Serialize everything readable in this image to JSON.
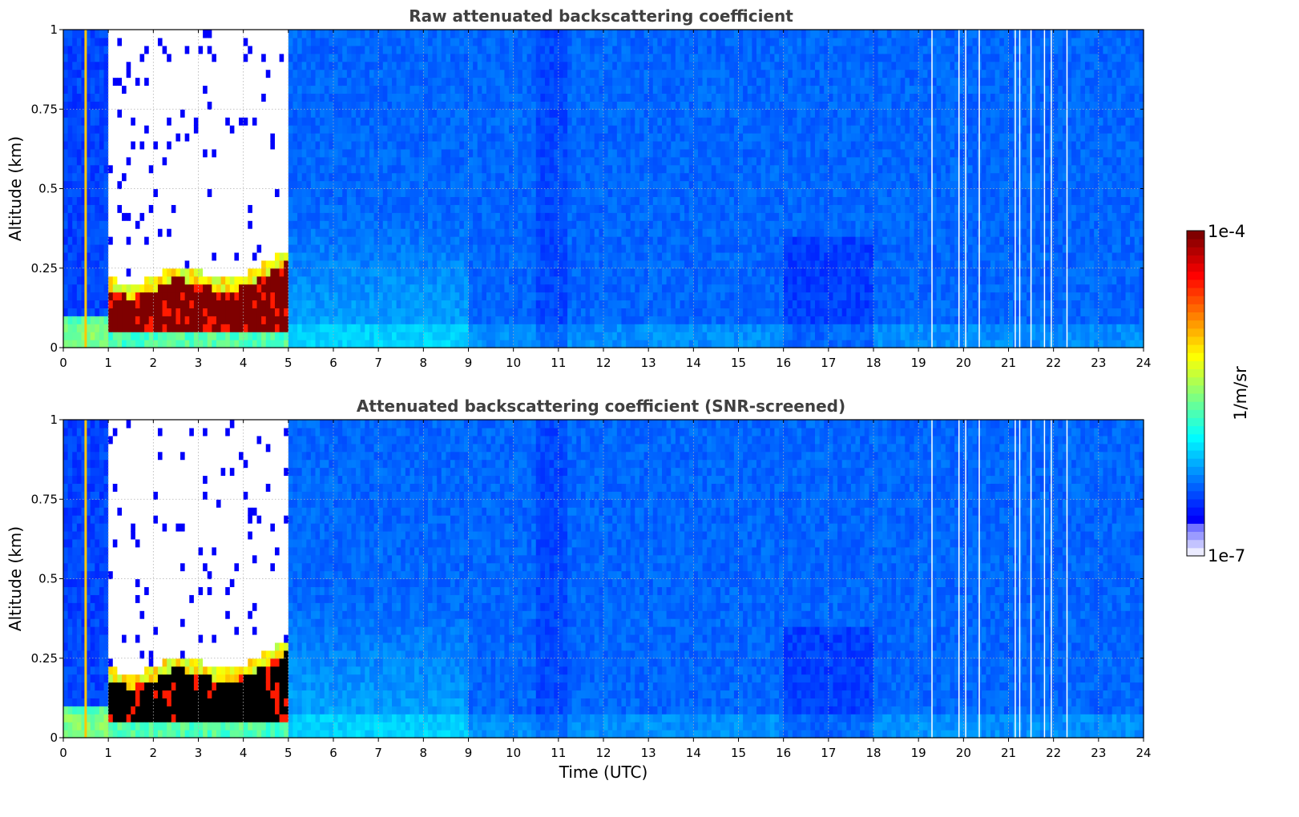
{
  "chart_data": [
    {
      "type": "heatmap",
      "title": "Raw attenuated backscattering coefficient",
      "xlabel": "",
      "ylabel": "Altitude (km)",
      "xlim": [
        0,
        24
      ],
      "ylim": [
        0,
        1
      ],
      "x_ticks": [
        "0",
        "1",
        "2",
        "3",
        "4",
        "5",
        "6",
        "7",
        "8",
        "9",
        "10",
        "11",
        "12",
        "13",
        "14",
        "15",
        "16",
        "17",
        "18",
        "19",
        "20",
        "21",
        "22",
        "23",
        "24"
      ],
      "y_ticks": [
        "0",
        "0.25",
        "0.5",
        "0.75",
        "1"
      ],
      "grid": true,
      "colorscale": "jet",
      "scale": "log",
      "saturated_color": "#7f0000",
      "features": [
        {
          "kind": "fog_layer_top_km",
          "x": [
            1.0,
            1.5,
            2.0,
            2.5,
            3.0,
            3.5,
            4.0,
            4.5,
            5.0
          ],
          "y": [
            0.2,
            0.18,
            0.2,
            0.24,
            0.22,
            0.2,
            0.21,
            0.25,
            0.29
          ]
        },
        {
          "kind": "signal_blocked_above_fog",
          "x_range": [
            1.0,
            5.0
          ]
        },
        {
          "kind": "white_gaps_utc",
          "x": [
            19.3,
            19.9,
            20.05,
            20.35,
            21.15,
            21.25,
            21.5,
            21.8,
            21.95,
            22.3
          ]
        }
      ]
    },
    {
      "type": "heatmap",
      "title": "Attenuated backscattering coefficient (SNR-screened)",
      "xlabel": "Time (UTC)",
      "ylabel": "Altitude (km)",
      "xlim": [
        0,
        24
      ],
      "ylim": [
        0,
        1
      ],
      "x_ticks": [
        "0",
        "1",
        "2",
        "3",
        "4",
        "5",
        "6",
        "7",
        "8",
        "9",
        "10",
        "11",
        "12",
        "13",
        "14",
        "15",
        "16",
        "17",
        "18",
        "19",
        "20",
        "21",
        "22",
        "23",
        "24"
      ],
      "y_ticks": [
        "0",
        "0.25",
        "0.5",
        "0.75",
        "1"
      ],
      "grid": true,
      "colorscale": "jet",
      "scale": "log",
      "saturated_color": "#000000",
      "features": [
        {
          "kind": "fog_layer_top_km",
          "x": [
            1.0,
            1.5,
            2.0,
            2.5,
            3.0,
            3.5,
            4.0,
            4.5,
            5.0
          ],
          "y": [
            0.2,
            0.18,
            0.2,
            0.24,
            0.22,
            0.2,
            0.21,
            0.25,
            0.29
          ]
        },
        {
          "kind": "signal_blocked_above_fog",
          "x_range": [
            1.0,
            5.0
          ]
        },
        {
          "kind": "white_gaps_utc",
          "x": [
            19.3,
            19.9,
            20.05,
            20.35,
            21.15,
            21.25,
            21.5,
            21.8,
            21.95,
            22.3
          ]
        }
      ]
    }
  ],
  "colorbar": {
    "max_label": "1e-4",
    "min_label": "1e-7",
    "label": "1/m/sr",
    "colorscale": "jet",
    "levels": 40
  }
}
